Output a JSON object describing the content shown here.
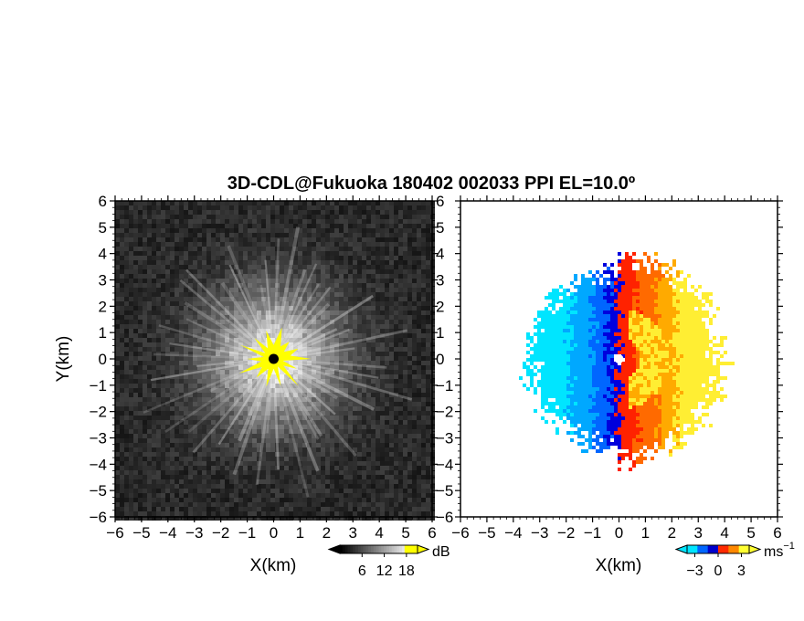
{
  "title": "3D-CDL@Fukuoka 180402 002033 PPI EL=10.0º",
  "chart_data": [
    {
      "type": "heatmap",
      "panel": "left",
      "xlabel": "X(km)",
      "ylabel": "Y(km)",
      "xlim": [
        -6,
        6
      ],
      "ylim": [
        -6,
        6
      ],
      "xticks": [
        "−6",
        "−5",
        "−4",
        "−3",
        "−2",
        "−1",
        "0",
        "1",
        "2",
        "3",
        "4",
        "5",
        "6"
      ],
      "yticks": [
        "6",
        "5",
        "4",
        "3",
        "2",
        "1",
        "0",
        "−1",
        "−2",
        "−3",
        "−4",
        "−5",
        "−6"
      ],
      "colorbar": {
        "unit": "dB",
        "ticks": [
          "6",
          "12",
          "18"
        ],
        "range": [
          0,
          21
        ],
        "colormap": "gray-to-yellow",
        "colors": [
          "#000000",
          "#ffffff",
          "#ffff00"
        ]
      },
      "description_values": {
        "background_level_db": 3,
        "center_level_db": 21,
        "bright_radius_km": 2.5
      }
    },
    {
      "type": "heatmap",
      "panel": "right",
      "xlabel": "X(km)",
      "ylabel": "",
      "xlim": [
        -6,
        6
      ],
      "ylim": [
        -6,
        6
      ],
      "xticks": [
        "−6",
        "−5",
        "−4",
        "−3",
        "−2",
        "−1",
        "0",
        "1",
        "2",
        "3",
        "4",
        "5",
        "6"
      ],
      "yticks": [
        "6",
        "5",
        "4",
        "3",
        "2",
        "1",
        "0",
        "−1",
        "−2",
        "−3",
        "−4",
        "−5",
        "−6"
      ],
      "colorbar": {
        "unit": "ms",
        "unit_exp": "−1",
        "ticks": [
          "−3",
          "0",
          "3"
        ],
        "range": [
          -4,
          4
        ],
        "colors": [
          "#00e5ff",
          "#0066ff",
          "#0000cc",
          "#ff2a00",
          "#ff8800",
          "#ffff33"
        ]
      },
      "description_values": {
        "echo_radius_km": 3.5,
        "negative_side": "west",
        "positive_side": "east"
      }
    }
  ]
}
